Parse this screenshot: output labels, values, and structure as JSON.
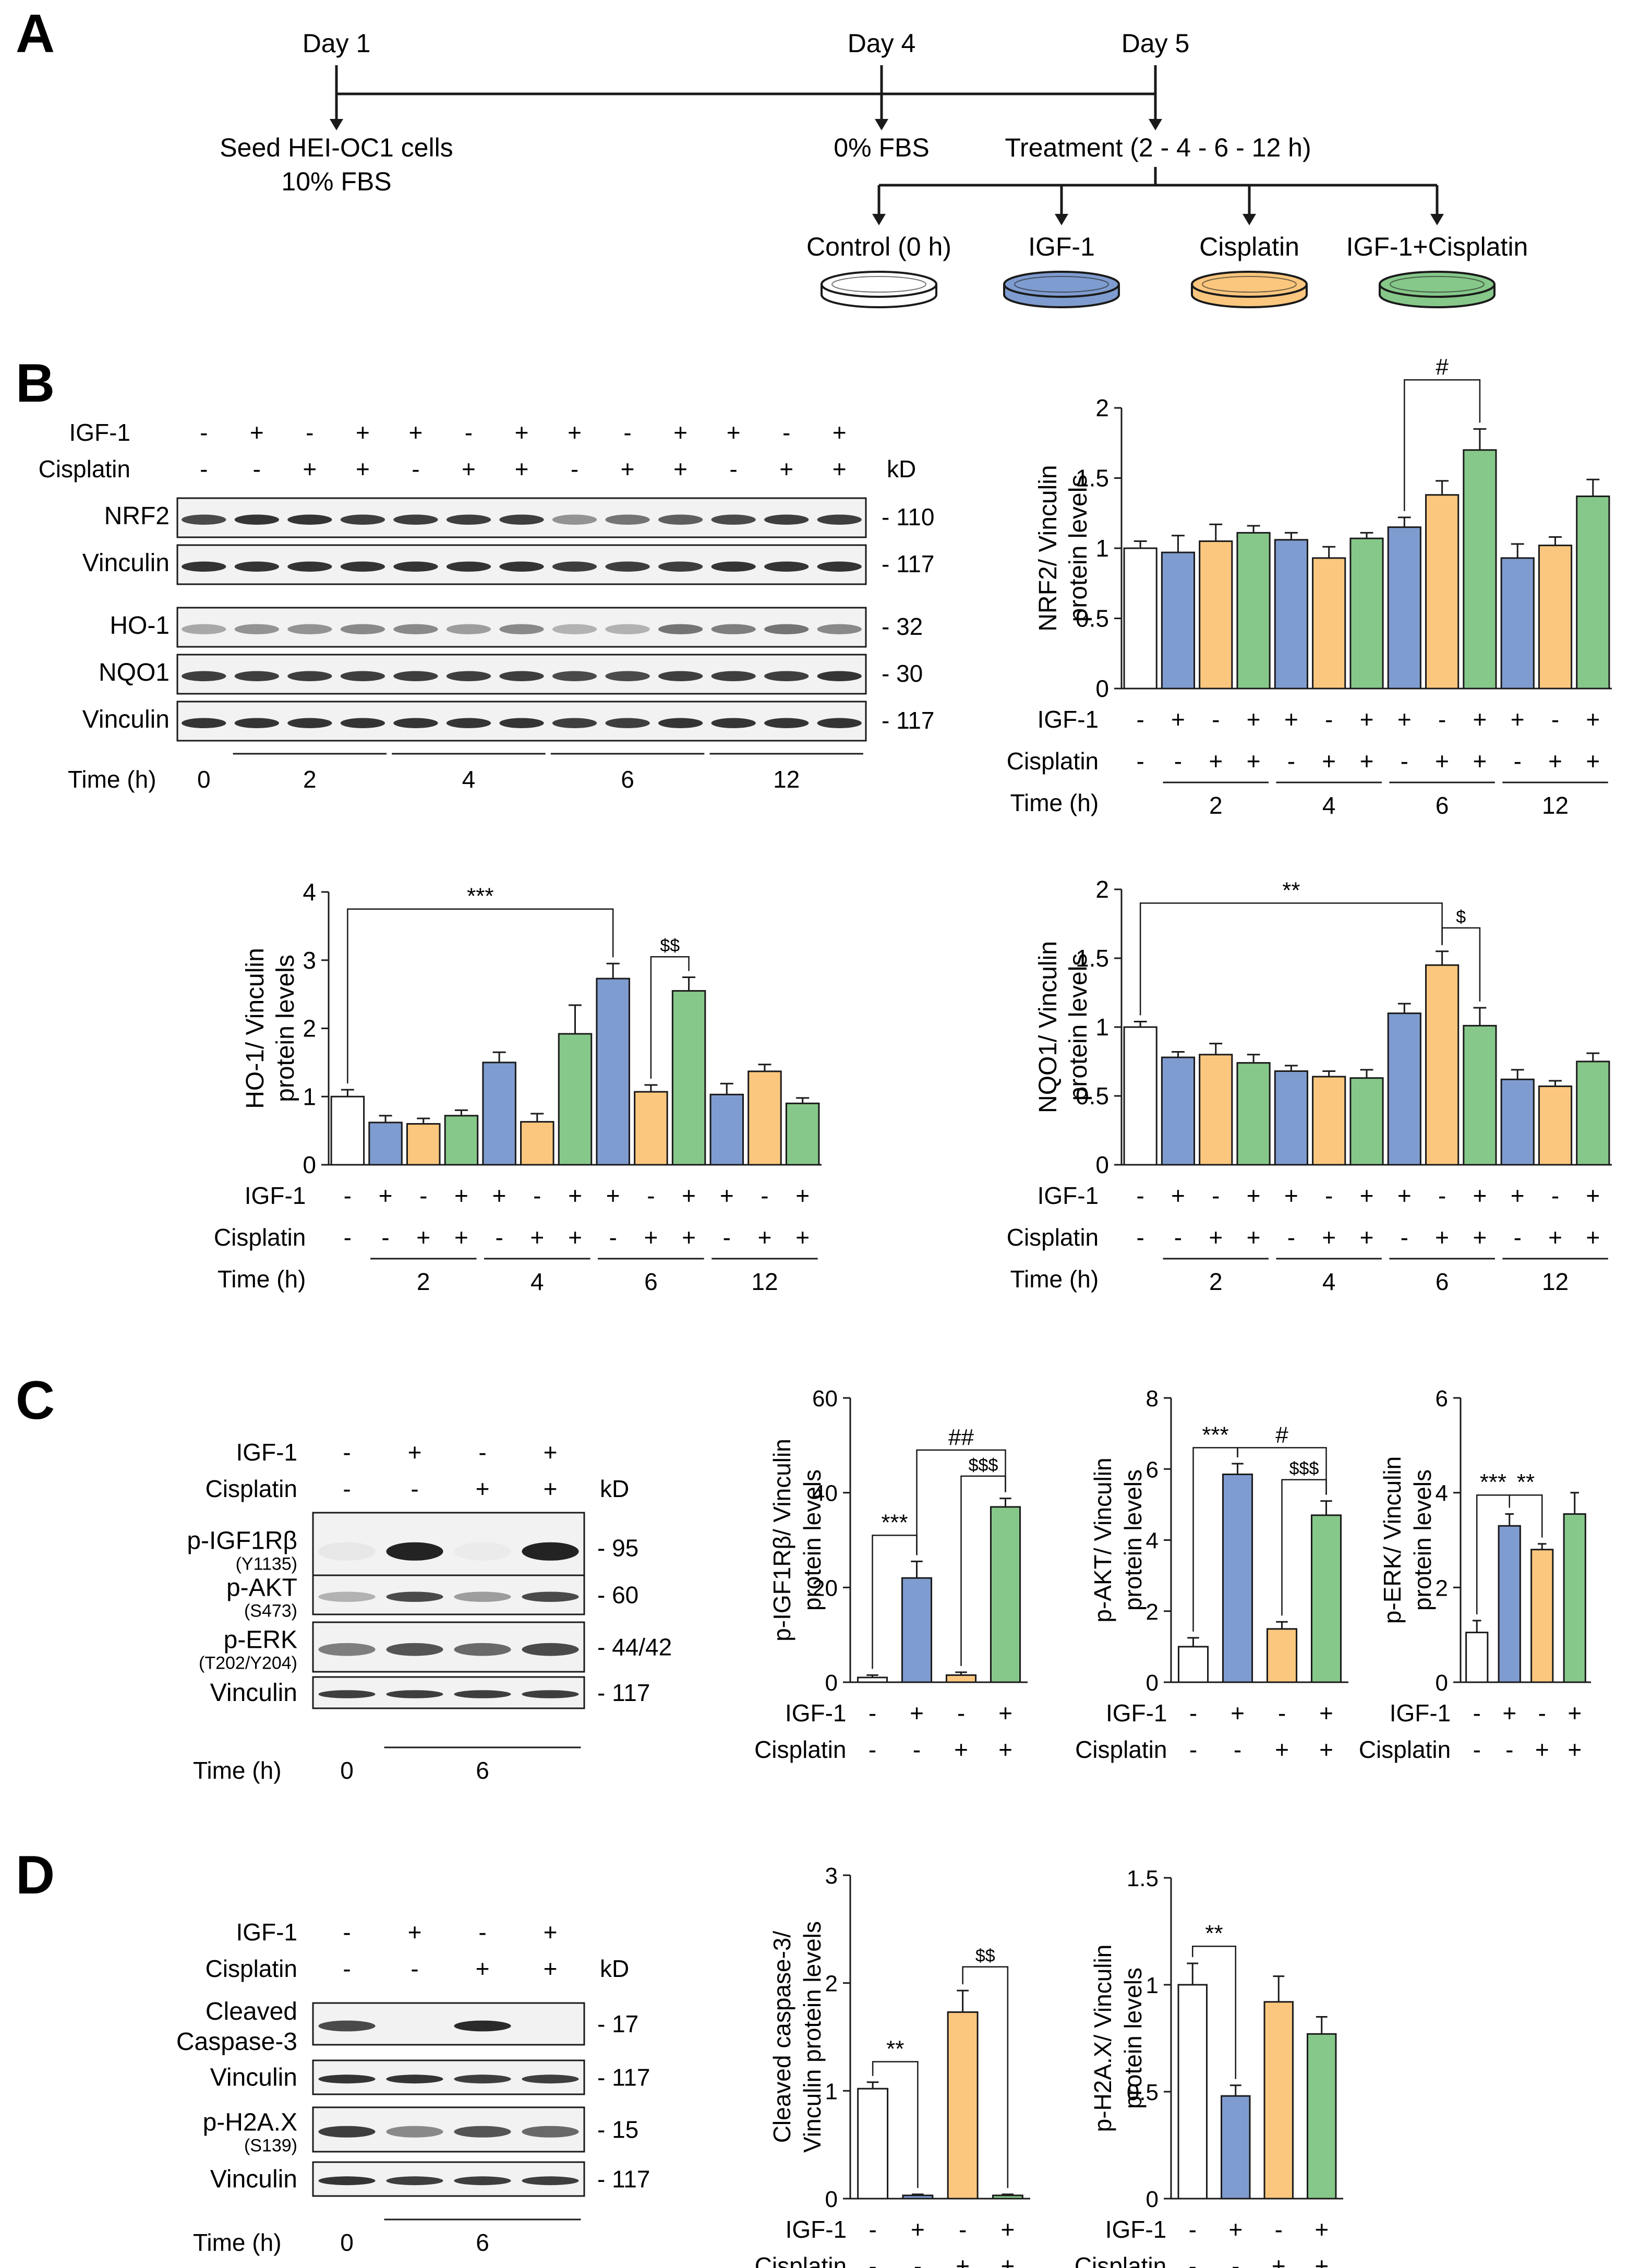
{
  "colors": {
    "control": "#ffffff",
    "igf1": "#7f9cd0",
    "cisplatin": "#fbc77e",
    "combo": "#86c88a",
    "line": "#1a1a1a",
    "blot_bg": "#f2f2f2",
    "band": "#1f1f1f"
  },
  "panels": {
    "A": "A",
    "B": "B",
    "C": "C",
    "D": "D"
  },
  "timeline": {
    "days": [
      "Day 1",
      "Day 4",
      "Day 5"
    ],
    "seed_lines": [
      "Seed HEI-OC1 cells",
      "10% FBS"
    ],
    "serum": "0% FBS",
    "treatment": "Treatment (2 - 4 - 6 - 12 h)",
    "dishes": [
      "Control (0 h)",
      "IGF-1",
      "Cisplatin",
      "IGF-1+Cisplatin"
    ]
  },
  "labels": {
    "igf": "IGF-1",
    "cis": "Cisplatin",
    "time": "Time (h)",
    "kd": "kD",
    "plus": "+",
    "minus": "-"
  },
  "blotB": {
    "igf_signs": [
      "-",
      "+",
      "-",
      "+",
      "+",
      "-",
      "+",
      "+",
      "-",
      "+",
      "+",
      "-",
      "+"
    ],
    "cis_signs": [
      "-",
      "-",
      "+",
      "+",
      "-",
      "+",
      "+",
      "-",
      "+",
      "+",
      "-",
      "+",
      "+"
    ],
    "time_zero": "0",
    "time_groups": [
      "2",
      "4",
      "6",
      "12"
    ],
    "rows": [
      {
        "label": "NRF2",
        "kd": "- 110"
      },
      {
        "label": "Vinculin",
        "kd": "- 117"
      },
      {
        "label": "HO-1",
        "kd": "- 32"
      },
      {
        "label": "NQO1",
        "kd": "- 30"
      },
      {
        "label": "Vinculin",
        "kd": "- 117"
      }
    ]
  },
  "blotC": {
    "igf_signs": [
      "-",
      "+",
      "-",
      "+"
    ],
    "cis_signs": [
      "-",
      "-",
      "+",
      "+"
    ],
    "time_zero": "0",
    "time_group": "6",
    "rows": [
      {
        "label": "p-IGF1Rβ",
        "sub": "(Y1135)",
        "kd": "- 95"
      },
      {
        "label": "p-AKT",
        "sub": "(S473)",
        "kd": "- 60"
      },
      {
        "label": "p-ERK",
        "sub": "(T202/Y204)",
        "kd": "- 44/42"
      },
      {
        "label": "Vinculin",
        "sub": "",
        "kd": "- 117"
      }
    ]
  },
  "blotD": {
    "igf_signs": [
      "-",
      "+",
      "-",
      "+"
    ],
    "cis_signs": [
      "-",
      "-",
      "+",
      "+"
    ],
    "time_zero": "0",
    "time_group": "6",
    "rows": [
      {
        "label": "Cleaved",
        "label2": "Caspase-3",
        "sub": "",
        "kd": "- 17"
      },
      {
        "label": "Vinculin",
        "label2": "",
        "sub": "",
        "kd": "- 117"
      },
      {
        "label": "p-H2A.X",
        "label2": "",
        "sub": "(S139)",
        "kd": "- 15"
      },
      {
        "label": "Vinculin",
        "label2": "",
        "sub": "",
        "kd": "- 117"
      }
    ]
  },
  "chart_data": [
    {
      "id": "nrf2",
      "type": "bar",
      "ylabel": [
        "NRF2/ Vinculin",
        "protein levels"
      ],
      "ylim": [
        0,
        2
      ],
      "yticks": [
        "0",
        "0.5",
        "1",
        "1.5",
        "2"
      ],
      "values": [
        1.0,
        0.97,
        1.05,
        1.11,
        1.06,
        0.93,
        1.07,
        1.15,
        1.38,
        1.7,
        0.93,
        1.02,
        1.37
      ],
      "errors": [
        0.05,
        0.12,
        0.12,
        0.05,
        0.05,
        0.08,
        0.04,
        0.07,
        0.1,
        0.15,
        0.1,
        0.06,
        0.12
      ],
      "groups": [
        "2",
        "4",
        "6",
        "12"
      ],
      "annotations": [
        {
          "from": 7,
          "to": 9,
          "text": "#",
          "level": 2.2
        }
      ]
    },
    {
      "id": "ho1",
      "type": "bar",
      "ylabel": [
        "HO-1/ Vinculin",
        "protein levels"
      ],
      "ylim": [
        0,
        4
      ],
      "yticks": [
        "0",
        "1",
        "2",
        "3",
        "4"
      ],
      "values": [
        1.0,
        0.62,
        0.6,
        0.72,
        1.5,
        0.63,
        1.92,
        2.73,
        1.07,
        2.55,
        1.03,
        1.37,
        0.9
      ],
      "errors": [
        0.1,
        0.1,
        0.08,
        0.08,
        0.15,
        0.12,
        0.42,
        0.22,
        0.1,
        0.2,
        0.16,
        0.1,
        0.08
      ],
      "groups": [
        "2",
        "4",
        "6",
        "12"
      ],
      "annotations": [
        {
          "from": 0,
          "to": 7,
          "text": "***",
          "level": 3.75
        },
        {
          "from": 8,
          "to": 9,
          "text": "$$",
          "level": 3.05
        }
      ]
    },
    {
      "id": "nqo1",
      "type": "bar",
      "ylabel": [
        "NQO1/ Vinculin",
        "protein levels"
      ],
      "ylim": [
        0,
        2
      ],
      "yticks": [
        "0",
        "0.5",
        "1",
        "1.5",
        "2"
      ],
      "values": [
        1.0,
        0.78,
        0.8,
        0.74,
        0.68,
        0.64,
        0.63,
        1.1,
        1.45,
        1.01,
        0.62,
        0.57,
        0.75
      ],
      "errors": [
        0.04,
        0.04,
        0.08,
        0.06,
        0.04,
        0.04,
        0.06,
        0.07,
        0.1,
        0.13,
        0.07,
        0.04,
        0.06
      ],
      "groups": [
        "2",
        "4",
        "6",
        "12"
      ],
      "annotations": [
        {
          "from": 0,
          "to": 8,
          "text": "**",
          "level": 1.9
        },
        {
          "from": 8,
          "to": 9,
          "text": "$",
          "level": 1.72
        }
      ]
    },
    {
      "id": "pigf1r",
      "type": "bar",
      "ylabel": [
        "p-IGF1Rβ/ Vinculin",
        "protein levels"
      ],
      "ylim": [
        0,
        60
      ],
      "yticks": [
        "0",
        "20",
        "40",
        "60"
      ],
      "values": [
        1.0,
        22.0,
        1.5,
        37.0
      ],
      "errors": [
        0.5,
        3.5,
        0.6,
        1.8
      ],
      "annotations": [
        {
          "from": 0,
          "to": 1,
          "text": "***",
          "level": 31
        },
        {
          "from": 1,
          "to": 3,
          "text": "##",
          "level": 49
        },
        {
          "from": 2,
          "to": 3,
          "text": "$$$",
          "level": 43.5
        }
      ]
    },
    {
      "id": "pakt",
      "type": "bar",
      "ylabel": [
        "p-AKT/ Vinculin",
        "protein levels"
      ],
      "ylim": [
        0,
        8
      ],
      "yticks": [
        "0",
        "2",
        "4",
        "6",
        "8"
      ],
      "values": [
        1.0,
        5.85,
        1.5,
        4.7
      ],
      "errors": [
        0.25,
        0.3,
        0.2,
        0.4
      ],
      "annotations": [
        {
          "from": 0,
          "to": 1,
          "text": "***",
          "level": 6.6
        },
        {
          "from": 1,
          "to": 3,
          "text": "#",
          "level": 6.6
        },
        {
          "from": 2,
          "to": 3,
          "text": "$$$",
          "level": 5.7
        }
      ]
    },
    {
      "id": "perk",
      "type": "bar",
      "ylabel": [
        "p-ERK/ Vinculin",
        "protein levels"
      ],
      "ylim": [
        0,
        6
      ],
      "yticks": [
        "0",
        "2",
        "4",
        "6"
      ],
      "values": [
        1.05,
        3.3,
        2.8,
        3.55
      ],
      "errors": [
        0.25,
        0.25,
        0.12,
        0.45
      ],
      "annotations": [
        {
          "from": 0,
          "to": 1,
          "text": "***",
          "level": 3.95
        },
        {
          "from": 1,
          "to": 2,
          "text": "**",
          "level": 3.95
        }
      ]
    },
    {
      "id": "casp3",
      "type": "bar",
      "ylabel": [
        "Cleaved caspase-3/",
        "Vinculin protein levels"
      ],
      "ylim": [
        0,
        3
      ],
      "yticks": [
        "0",
        "1",
        "2",
        "3"
      ],
      "values": [
        1.02,
        0.03,
        1.73,
        0.03
      ],
      "errors": [
        0.06,
        0.01,
        0.2,
        0.01
      ],
      "annotations": [
        {
          "from": 0,
          "to": 1,
          "text": "**",
          "level": 1.27
        },
        {
          "from": 2,
          "to": 3,
          "text": "$$",
          "level": 2.15
        }
      ]
    },
    {
      "id": "ph2ax",
      "type": "bar",
      "ylabel": [
        "p-H2A.X/ Vinculin",
        "protein levels"
      ],
      "ylim": [
        0,
        1.5
      ],
      "yticks": [
        "0",
        "0.5",
        "1",
        "1.5"
      ],
      "values": [
        1.0,
        0.48,
        0.92,
        0.77
      ],
      "errors": [
        0.1,
        0.05,
        0.12,
        0.08
      ],
      "annotations": [
        {
          "from": 0,
          "to": 1,
          "text": "**",
          "level": 1.18
        }
      ]
    }
  ]
}
